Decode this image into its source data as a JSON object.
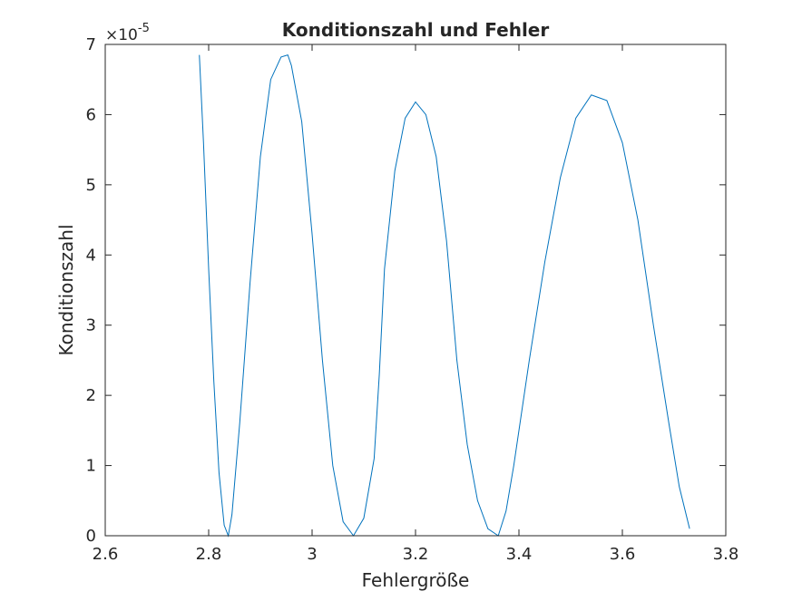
{
  "chart_data": {
    "type": "line",
    "title": "Konditionszahl und Fehler",
    "xlabel": "Fehlergröße",
    "ylabel": "Konditionszahl",
    "y_exponent_base": "×10",
    "y_exponent_power": "-5",
    "xlim": [
      2.6,
      3.8
    ],
    "ylim": [
      0,
      7
    ],
    "x_ticks": [
      2.6,
      2.8,
      3.0,
      3.2,
      3.4,
      3.6,
      3.8
    ],
    "x_tick_labels": [
      "2.6",
      "2.8",
      "3",
      "3.2",
      "3.4",
      "3.6",
      "3.8"
    ],
    "y_ticks": [
      0,
      1,
      2,
      3,
      4,
      5,
      6,
      7
    ],
    "y_tick_labels": [
      "0",
      "1",
      "2",
      "3",
      "4",
      "5",
      "6",
      "7"
    ],
    "grid": false,
    "line_color": "#0072BD",
    "series": [
      {
        "values_unit": "×10^-5",
        "x": [
          2.782,
          2.79,
          2.8,
          2.81,
          2.82,
          2.83,
          2.838,
          2.845,
          2.86,
          2.88,
          2.9,
          2.92,
          2.94,
          2.953,
          2.96,
          2.98,
          3.0,
          3.02,
          3.04,
          3.06,
          3.08,
          3.1,
          3.12,
          3.13,
          3.14,
          3.16,
          3.18,
          3.2,
          3.22,
          3.24,
          3.26,
          3.28,
          3.3,
          3.32,
          3.34,
          3.36,
          3.375,
          3.39,
          3.42,
          3.45,
          3.48,
          3.51,
          3.54,
          3.57,
          3.6,
          3.63,
          3.66,
          3.69,
          3.71,
          3.73
        ],
        "y": [
          6.85,
          5.6,
          3.8,
          2.2,
          0.9,
          0.15,
          0.0,
          0.3,
          1.6,
          3.6,
          5.4,
          6.5,
          6.82,
          6.85,
          6.7,
          5.9,
          4.3,
          2.5,
          1.0,
          0.2,
          0.0,
          0.25,
          1.1,
          2.3,
          3.8,
          5.2,
          5.95,
          6.18,
          6.0,
          5.4,
          4.2,
          2.5,
          1.3,
          0.5,
          0.1,
          0.0,
          0.35,
          1.0,
          2.5,
          3.9,
          5.1,
          5.95,
          6.28,
          6.2,
          5.6,
          4.5,
          3.0,
          1.6,
          0.7,
          0.1
        ]
      }
    ]
  }
}
